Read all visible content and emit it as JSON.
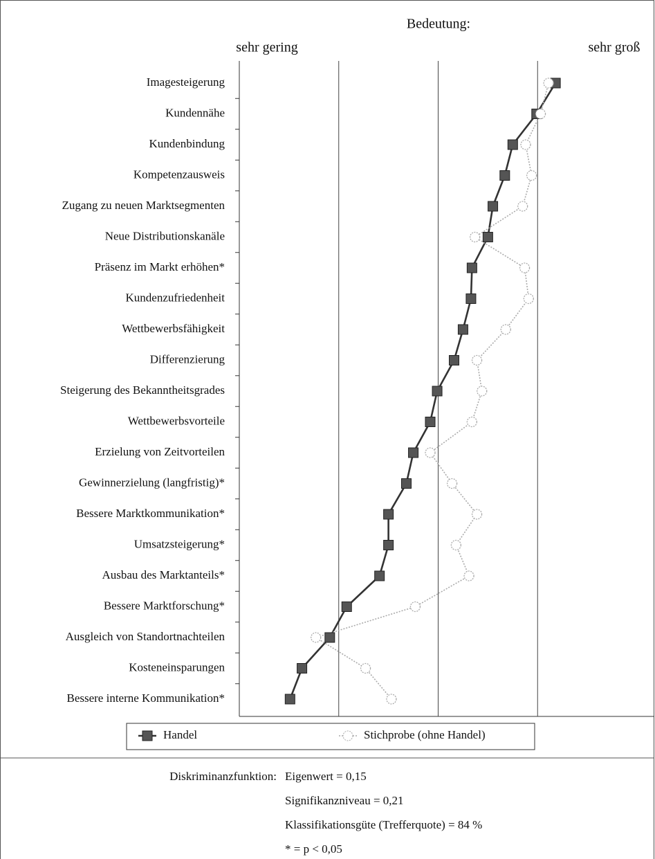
{
  "chart_data": {
    "type": "line",
    "orientation": "horizontal",
    "title": "Bedeutung:",
    "xlabel_left": "sehr gering",
    "xlabel_right": "sehr groß",
    "categories": [
      "Imagesteigerung",
      "Kundennähe",
      "Kundenbindung",
      "Kompetenzausweis",
      "Zugang zu neuen Marktsegmenten",
      "Neue Distributionskanäle",
      "Präsenz im Markt erhöhen*",
      "Kundenzufriedenheit",
      "Wettbewerbsfähigkeit",
      "Differenzierung",
      "Steigerung des Bekanntheitsgrades",
      "Wettbewerbsvorteile",
      "Erzielung von Zeitvorteilen",
      "Gewinnerzielung (langfristig)*",
      "Bessere Marktkommunikation*",
      "Umsatzsteigerung*",
      "Ausbau des Marktanteils*",
      "Bessere Marktforschung*",
      "Ausgleich von Standortnachteilen",
      "Kosteneinsparungen",
      "Bessere interne Kommunikation*"
    ],
    "series": [
      {
        "name": "Handel",
        "color": "#555555",
        "marker": "square",
        "values": [
          4.18,
          3.99,
          3.75,
          3.67,
          3.55,
          3.5,
          3.34,
          3.33,
          3.25,
          3.16,
          2.99,
          2.92,
          2.75,
          2.68,
          2.5,
          2.5,
          2.41,
          2.08,
          1.91,
          1.63,
          1.51
        ]
      },
      {
        "name": "Stichprobe (ohne Handel)",
        "color": "#aaaaaa",
        "marker": "circle",
        "values": [
          4.11,
          4.03,
          3.88,
          3.94,
          3.85,
          3.37,
          3.87,
          3.91,
          3.68,
          3.39,
          3.44,
          3.34,
          2.92,
          3.14,
          3.39,
          3.18,
          3.31,
          2.77,
          1.77,
          2.27,
          2.53
        ]
      }
    ],
    "xlim": [
      1,
      5
    ],
    "xgrid": [
      2,
      3,
      4
    ]
  },
  "notes": {
    "label": "Diskriminanzfunktion:",
    "lines": [
      "Eigenwert = 0,15",
      "Signifikanzniveau = 0,21",
      "Klassifikationsgüte (Trefferquote) = 84 %",
      "* = p < 0,05"
    ]
  }
}
